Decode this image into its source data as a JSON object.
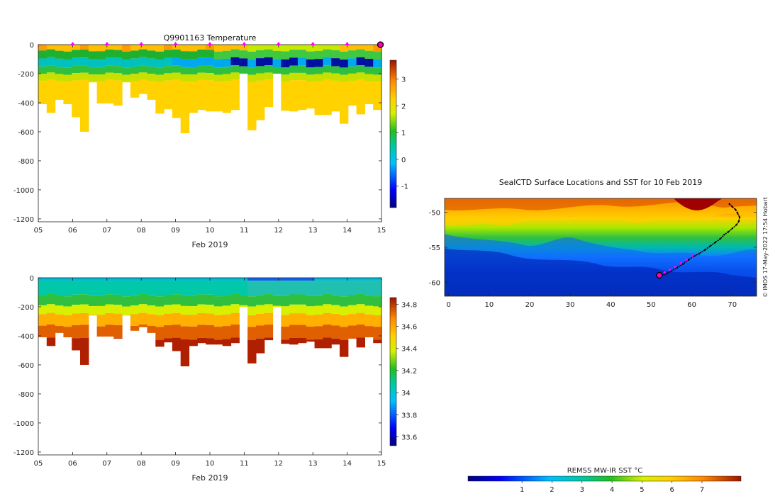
{
  "chart_data": [
    {
      "type": "heatmap",
      "title": "Q9901163  Temperature",
      "xlabel": "Feb 2019",
      "ylabel": "",
      "x_ticks": [
        "05",
        "06",
        "07",
        "08",
        "09",
        "10",
        "11",
        "12",
        "13",
        "14",
        "15"
      ],
      "y_ticks": [
        "0",
        "-200",
        "-400",
        "-600",
        "-800",
        "-1000",
        "-1200"
      ],
      "xlim": [
        5,
        15
      ],
      "ylim": [
        -1220,
        0
      ],
      "colorbar": {
        "ticks": [
          "3",
          "2",
          "1",
          "0",
          "-1"
        ],
        "range": [
          -1.8,
          3.7
        ]
      },
      "profile_depths": [
        -410,
        -470,
        -380,
        -410,
        -500,
        -600,
        -260,
        -405,
        -405,
        -420,
        -260,
        -365,
        -340,
        -380,
        -475,
        -445,
        -505,
        -610,
        -470,
        -450,
        -460,
        -460,
        -470,
        -450,
        -200,
        -590,
        -520,
        -430,
        -200,
        -455,
        -460,
        -450,
        -440,
        -485,
        -485,
        -460,
        -545,
        -420,
        -480,
        -410,
        -450
      ],
      "surface_markers_days": [
        6,
        7,
        8,
        9,
        10,
        11,
        12,
        13,
        14
      ],
      "last_marker_day": 15
    },
    {
      "type": "heatmap",
      "title": "",
      "xlabel": "Feb 2019",
      "ylabel": "",
      "x_ticks": [
        "05",
        "06",
        "07",
        "08",
        "09",
        "10",
        "11",
        "12",
        "13",
        "14",
        "15"
      ],
      "y_ticks": [
        "0",
        "-200",
        "-400",
        "-600",
        "-800",
        "-1000",
        "-1200"
      ],
      "xlim": [
        5,
        15
      ],
      "ylim": [
        -1220,
        0
      ],
      "colorbar": {
        "ticks": [
          "34.8",
          "34.6",
          "34.4",
          "34.2",
          "34",
          "33.8",
          "33.6"
        ],
        "range": [
          33.52,
          34.86
        ]
      }
    },
    {
      "type": "heatmap",
      "title": "SealCTD Surface Locations and SST for 10 Feb 2019",
      "xlabel": "",
      "ylabel": "",
      "x_ticks": [
        "0",
        "10",
        "20",
        "30",
        "40",
        "50",
        "60",
        "70"
      ],
      "y_ticks": [
        "-50",
        "-55",
        "-60"
      ],
      "xlim": [
        -1,
        76
      ],
      "ylim": [
        -62,
        -48
      ],
      "track": [
        [
          69.3,
          -48.8
        ],
        [
          70.0,
          -49.2
        ],
        [
          70.8,
          -49.6
        ],
        [
          71.3,
          -50.1
        ],
        [
          71.8,
          -50.7
        ],
        [
          71.6,
          -51.3
        ],
        [
          71.0,
          -51.8
        ],
        [
          70.0,
          -52.3
        ],
        [
          69.0,
          -52.8
        ],
        [
          68.0,
          -53.2
        ],
        [
          67.0,
          -53.8
        ],
        [
          65.8,
          -54.3
        ],
        [
          64.6,
          -54.8
        ],
        [
          63.2,
          -55.4
        ],
        [
          61.8,
          -55.9
        ],
        [
          60.5,
          -56.3
        ],
        [
          59.2,
          -56.8
        ],
        [
          57.8,
          -57.4
        ],
        [
          56.4,
          -57.9
        ],
        [
          55.0,
          -58.4
        ],
        [
          53.6,
          -58.8
        ],
        [
          52.4,
          -59.1
        ],
        [
          51.9,
          -59.0
        ]
      ],
      "track_markers": [
        [
          53.3,
          -58.6
        ],
        [
          54.6,
          -58.2
        ],
        [
          55.9,
          -57.8
        ],
        [
          57.3,
          -57.3
        ],
        [
          58.7,
          -56.8
        ],
        [
          60.2,
          -56.2
        ]
      ],
      "current_position": [
        52.0,
        -59.0
      ],
      "colorbar": {
        "title": "REMSS MW-IR SST °C",
        "ticks": [
          "1",
          "2",
          "3",
          "4",
          "5",
          "6",
          "7"
        ],
        "range": [
          -0.8,
          8.3
        ]
      }
    }
  ],
  "credit": "© IMOS 17-May-2022 17:54 Hobart"
}
